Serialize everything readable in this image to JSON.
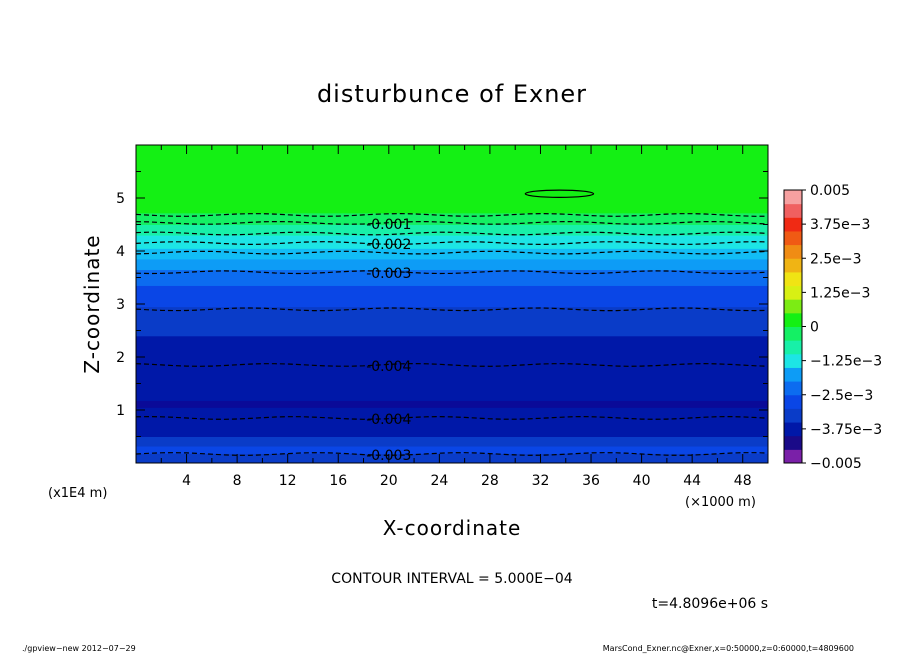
{
  "chart_data": {
    "type": "contour",
    "title": "disturbunce of Exner",
    "xlabel": "X-coordinate",
    "ylabel": "Z-coordinate",
    "x_unit_label": "(×1000 m)",
    "y_unit_label": "(x1E4 m)",
    "xlim": [
      0,
      50
    ],
    "ylim": [
      0,
      6
    ],
    "x_ticks": [
      {
        "value": 4,
        "label": "4"
      },
      {
        "value": 8,
        "label": "8"
      },
      {
        "value": 12,
        "label": "12"
      },
      {
        "value": 16,
        "label": "16"
      },
      {
        "value": 20,
        "label": "20"
      },
      {
        "value": 24,
        "label": "24"
      },
      {
        "value": 28,
        "label": "28"
      },
      {
        "value": 32,
        "label": "32"
      },
      {
        "value": 36,
        "label": "36"
      },
      {
        "value": 40,
        "label": "40"
      },
      {
        "value": 44,
        "label": "44"
      },
      {
        "value": 48,
        "label": "48"
      }
    ],
    "y_ticks": [
      {
        "value": 1,
        "label": "1"
      },
      {
        "value": 2,
        "label": "2"
      },
      {
        "value": 3,
        "label": "3"
      },
      {
        "value": 4,
        "label": "4"
      },
      {
        "value": 5,
        "label": "5"
      }
    ],
    "bands": [
      {
        "z0": 0.0,
        "z1": 0.18,
        "color": "#0a3cc8"
      },
      {
        "z0": 0.18,
        "z1": 0.32,
        "color": "#0a46e6"
      },
      {
        "z0": 0.32,
        "z1": 0.5,
        "color": "#0a3cc8"
      },
      {
        "z0": 0.5,
        "z1": 1.05,
        "color": "#0018a8"
      },
      {
        "z0": 1.05,
        "z1": 1.18,
        "color": "#0a0a98"
      },
      {
        "z0": 1.18,
        "z1": 2.4,
        "color": "#0018a8"
      },
      {
        "z0": 2.4,
        "z1": 2.95,
        "color": "#0a3cc8"
      },
      {
        "z0": 2.95,
        "z1": 3.35,
        "color": "#0a46e6"
      },
      {
        "z0": 3.35,
        "z1": 3.65,
        "color": "#0c6cf0"
      },
      {
        "z0": 3.65,
        "z1": 3.85,
        "color": "#0d9cf6"
      },
      {
        "z0": 3.85,
        "z1": 4.05,
        "color": "#12bdf6"
      },
      {
        "z0": 4.05,
        "z1": 4.3,
        "color": "#1de5e5"
      },
      {
        "z0": 4.3,
        "z1": 4.5,
        "color": "#18f0a8"
      },
      {
        "z0": 4.5,
        "z1": 4.72,
        "color": "#14f064"
      },
      {
        "z0": 4.72,
        "z1": 6.0,
        "color": "#14f014"
      }
    ],
    "contours": [
      {
        "z": 0.17,
        "label": "-0.003",
        "label_x": 20
      },
      {
        "z": 0.85,
        "label": "-0.004",
        "label_x": 20
      },
      {
        "z": 1.85,
        "label": "-0.004",
        "label_x": 20
      },
      {
        "z": 2.9,
        "label": "",
        "label_x": null
      },
      {
        "z": 3.6,
        "label": "-0.003",
        "label_x": 20
      },
      {
        "z": 3.97,
        "label": "",
        "label_x": null
      },
      {
        "z": 4.15,
        "label": "-0.002",
        "label_x": 20
      },
      {
        "z": 4.33,
        "label": "",
        "label_x": null
      },
      {
        "z": 4.53,
        "label": "-0.001",
        "label_x": 20
      },
      {
        "z": 4.68,
        "label": "",
        "label_x": null
      }
    ],
    "closed_contour": {
      "x0": 30.8,
      "x1": 36.2,
      "z": 5.08,
      "dz": 0.04
    },
    "colorbar": {
      "min": -0.005,
      "max": 0.005,
      "colors": [
        "#7a20a8",
        "#1a0a88",
        "#0018a8",
        "#0a3cc8",
        "#0a46e6",
        "#0c6cf0",
        "#0d9cf6",
        "#1de5e5",
        "#18f0a8",
        "#14f064",
        "#14f014",
        "#7cec14",
        "#d8f014",
        "#f0e414",
        "#f0b414",
        "#f08c14",
        "#f05a14",
        "#f02a14",
        "#f06060",
        "#f6a0a0"
      ],
      "ticks": [
        {
          "value": -0.005,
          "label": "−0.005"
        },
        {
          "value": -0.00375,
          "label": "−3.75e−3"
        },
        {
          "value": -0.0025,
          "label": "−2.5e−3"
        },
        {
          "value": -0.00125,
          "label": "−1.25e−3"
        },
        {
          "value": 0,
          "label": "0"
        },
        {
          "value": 0.00125,
          "label": "1.25e−3"
        },
        {
          "value": 0.0025,
          "label": "2.5e−3"
        },
        {
          "value": 0.00375,
          "label": "3.75e−3"
        },
        {
          "value": 0.005,
          "label": "0.005"
        }
      ]
    },
    "contour_interval_text": "CONTOUR INTERVAL = 5.000E−04",
    "time_text": "t=4.8096e+06 s"
  },
  "footer": {
    "left": "./gpview−new  2012−07−29",
    "right": "MarsCond_Exner.nc@Exner,x=0:50000,z=0:60000,t=4809600"
  }
}
